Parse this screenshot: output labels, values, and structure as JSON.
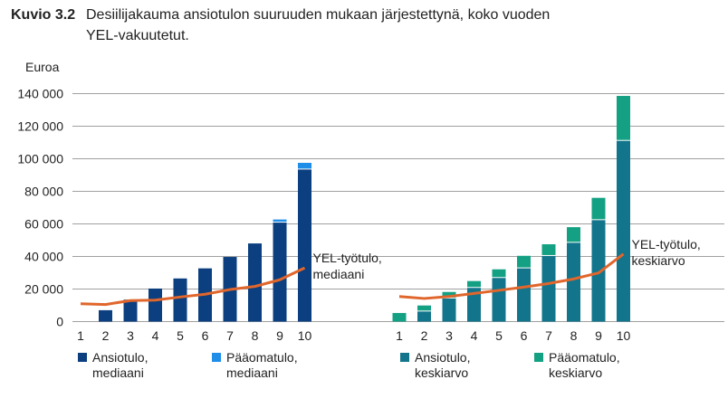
{
  "figure": {
    "label": "Kuvio 3.2",
    "title_line1": "Desiilijakauma ansiotulon suuruuden mukaan järjestettynä, koko vuoden",
    "title_line2": "YEL-vakuutetut."
  },
  "colors": {
    "ansiotulo_mediaani": "#0b3f7f",
    "paaomatulo_mediaani": "#1f8ee8",
    "ansiotulo_keskiarvo": "#12758c",
    "paaomatulo_keskiarvo": "#14a183",
    "yel_line": "#e0662c",
    "grid": "#a0a0a0"
  },
  "chart_data": [
    {
      "type": "bar",
      "stacked": true,
      "ylabel": "Euroa",
      "ylim": [
        0,
        140000
      ],
      "yticks": [
        "0",
        "20 000",
        "40 000",
        "60 000",
        "80 000",
        "100 000",
        "120 000",
        "140 000"
      ],
      "grid": true,
      "categories": [
        "1",
        "2",
        "3",
        "4",
        "5",
        "6",
        "7",
        "8",
        "9",
        "10"
      ],
      "series": [
        {
          "name": "Ansiotulo, mediaani",
          "values": [
            0,
            7000,
            13500,
            20300,
            26500,
            32700,
            39700,
            48000,
            60800,
            93400
          ]
        },
        {
          "name": "Pääomatulo, mediaani",
          "values": [
            0,
            0,
            0,
            0,
            0,
            0,
            0,
            0,
            1900,
            4100
          ]
        }
      ],
      "line": {
        "name": "YEL-työtulo, mediaani",
        "label_line1": "YEL-työtulo,",
        "label_line2": "mediaani",
        "values": [
          11000,
          10500,
          12900,
          13200,
          15100,
          16800,
          19700,
          21600,
          25700,
          33000
        ]
      },
      "legend_placement": "bottom"
    },
    {
      "type": "bar",
      "stacked": true,
      "ylim": [
        0,
        140000
      ],
      "grid": true,
      "categories": [
        "1",
        "2",
        "3",
        "4",
        "5",
        "6",
        "7",
        "8",
        "9",
        "10"
      ],
      "series": [
        {
          "name": "Ansiotulo, keskiarvo",
          "values": [
            0,
            6200,
            14200,
            20700,
            26800,
            32700,
            40300,
            48400,
            62300,
            111000
          ]
        },
        {
          "name": "Pääomatulo, keskiarvo",
          "values": [
            5300,
            3700,
            4000,
            4200,
            5300,
            7700,
            7200,
            9600,
            13700,
            27600
          ]
        }
      ],
      "line": {
        "name": "YEL-työtulo, keskiarvo",
        "label_line1": "YEL-työtulo,",
        "label_line2": "keskiarvo",
        "values": [
          15400,
          14200,
          15400,
          17300,
          19200,
          21200,
          23400,
          26200,
          29900,
          41500
        ]
      },
      "legend_placement": "bottom"
    }
  ],
  "legend": [
    {
      "line1": "Ansiotulo,",
      "line2": "mediaani"
    },
    {
      "line1": "Pääomatulo,",
      "line2": "mediaani"
    },
    {
      "line1": "Ansiotulo,",
      "line2": "keskiarvo"
    },
    {
      "line1": "Pääomatulo,",
      "line2": "keskiarvo"
    }
  ]
}
